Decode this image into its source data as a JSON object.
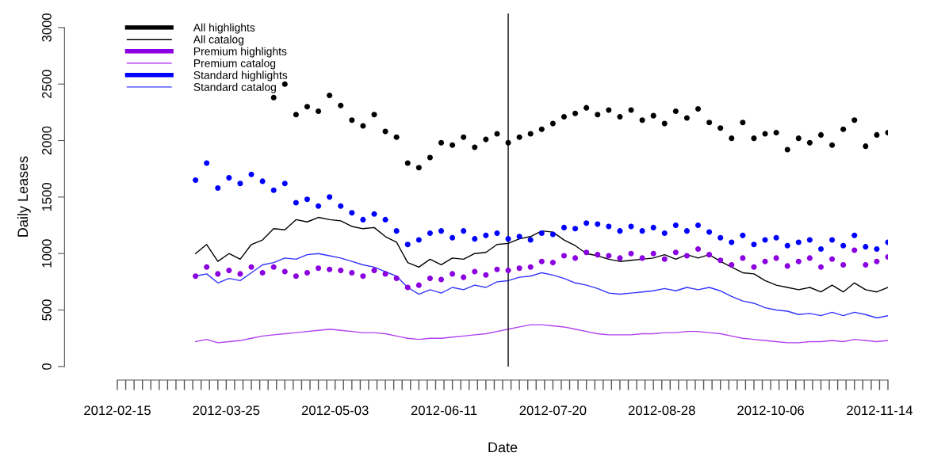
{
  "chart_data": {
    "type": "line",
    "xlabel": "Date",
    "ylabel": "Daily Leases",
    "legend": "top left",
    "grid": false,
    "x": [
      "2012-03-14",
      "2012-03-18",
      "2012-03-22",
      "2012-03-26",
      "2012-03-30",
      "2012-04-03",
      "2012-04-07",
      "2012-04-11",
      "2012-04-15",
      "2012-04-19",
      "2012-04-23",
      "2012-04-27",
      "2012-05-01",
      "2012-05-05",
      "2012-05-09",
      "2012-05-13",
      "2012-05-17",
      "2012-05-21",
      "2012-05-25",
      "2012-05-29",
      "2012-06-02",
      "2012-06-06",
      "2012-06-10",
      "2012-06-14",
      "2012-06-18",
      "2012-06-22",
      "2012-06-26",
      "2012-06-30",
      "2012-07-04",
      "2012-07-08",
      "2012-07-12",
      "2012-07-16",
      "2012-07-20",
      "2012-07-24",
      "2012-07-28",
      "2012-08-01",
      "2012-08-05",
      "2012-08-09",
      "2012-08-13",
      "2012-08-17",
      "2012-08-21",
      "2012-08-25",
      "2012-08-29",
      "2012-09-02",
      "2012-09-06",
      "2012-09-10",
      "2012-09-14",
      "2012-09-18",
      "2012-09-22",
      "2012-09-26",
      "2012-09-30",
      "2012-10-04",
      "2012-10-08",
      "2012-10-12",
      "2012-10-16",
      "2012-10-20",
      "2012-10-24",
      "2012-10-28",
      "2012-11-01",
      "2012-11-05",
      "2012-11-09",
      "2012-11-13",
      "2012-11-17"
    ],
    "series": [
      {
        "name": "All highlights",
        "type": "scatter",
        "marker": "circle",
        "color": "#000000",
        "values": [
          null,
          null,
          null,
          null,
          null,
          null,
          null,
          2380,
          2500,
          2230,
          2300,
          2260,
          2400,
          2310,
          2180,
          2130,
          2230,
          2080,
          2030,
          1800,
          1760,
          1850,
          1980,
          1960,
          2030,
          1940,
          2010,
          2060,
          1980,
          2030,
          2060,
          2100,
          2150,
          2210,
          2240,
          2290,
          2230,
          2270,
          2210,
          2270,
          2180,
          2220,
          2150,
          2260,
          2200,
          2280,
          2160,
          2110,
          2020,
          2160,
          2020,
          2060,
          2070,
          1920,
          2020,
          1980,
          2050,
          1960,
          2100,
          2180,
          1950,
          2050,
          2070
        ]
      },
      {
        "name": "All catalog",
        "color": "#000000",
        "values": [
          1000,
          1080,
          930,
          1000,
          950,
          1080,
          1120,
          1220,
          1210,
          1300,
          1280,
          1320,
          1300,
          1290,
          1240,
          1220,
          1230,
          1150,
          1100,
          920,
          880,
          950,
          900,
          960,
          950,
          1000,
          1010,
          1080,
          1090,
          1130,
          1150,
          1200,
          1190,
          1120,
          1070,
          1000,
          980,
          950,
          930,
          940,
          950,
          960,
          990,
          950,
          990,
          960,
          990,
          930,
          880,
          830,
          820,
          760,
          720,
          700,
          680,
          700,
          660,
          720,
          660,
          740,
          680,
          660,
          700
        ]
      },
      {
        "name": "Premium highlights",
        "type": "scatter",
        "marker": "circle",
        "color": "#8a00e0",
        "values": [
          800,
          880,
          820,
          850,
          820,
          880,
          830,
          880,
          840,
          800,
          830,
          870,
          860,
          850,
          830,
          800,
          850,
          820,
          780,
          700,
          720,
          780,
          770,
          820,
          790,
          840,
          810,
          860,
          850,
          870,
          880,
          930,
          920,
          980,
          960,
          1010,
          990,
          980,
          960,
          1000,
          960,
          1000,
          950,
          1010,
          980,
          1040,
          990,
          940,
          900,
          960,
          880,
          930,
          960,
          890,
          930,
          960,
          880,
          950,
          900,
          1030,
          900,
          930,
          970
        ]
      },
      {
        "name": "Premium catalog",
        "color": "#b040f0",
        "values": [
          220,
          240,
          210,
          220,
          230,
          250,
          270,
          280,
          290,
          300,
          310,
          320,
          330,
          320,
          310,
          300,
          300,
          290,
          270,
          250,
          240,
          250,
          250,
          260,
          270,
          280,
          290,
          310,
          330,
          350,
          370,
          370,
          360,
          350,
          330,
          310,
          290,
          280,
          280,
          280,
          290,
          290,
          300,
          300,
          310,
          310,
          300,
          290,
          270,
          250,
          240,
          230,
          220,
          210,
          210,
          220,
          220,
          230,
          220,
          240,
          230,
          220,
          230
        ]
      },
      {
        "name": "Standard highlights",
        "type": "scatter",
        "marker": "circle",
        "color": "#0000ff",
        "values": [
          1650,
          1800,
          1580,
          1670,
          1620,
          1700,
          1640,
          1560,
          1620,
          1450,
          1480,
          1420,
          1500,
          1420,
          1360,
          1300,
          1350,
          1300,
          1200,
          1080,
          1120,
          1180,
          1200,
          1140,
          1200,
          1130,
          1160,
          1180,
          1130,
          1150,
          1120,
          1180,
          1170,
          1230,
          1220,
          1270,
          1260,
          1240,
          1200,
          1240,
          1200,
          1230,
          1180,
          1250,
          1200,
          1250,
          1190,
          1140,
          1100,
          1160,
          1080,
          1120,
          1140,
          1070,
          1100,
          1120,
          1040,
          1120,
          1070,
          1160,
          1060,
          1040,
          1100
        ]
      },
      {
        "name": "Standard catalog",
        "color": "#3333ff",
        "values": [
          800,
          820,
          740,
          780,
          760,
          830,
          900,
          920,
          960,
          950,
          990,
          1000,
          980,
          960,
          930,
          900,
          880,
          840,
          800,
          700,
          640,
          680,
          650,
          700,
          680,
          720,
          700,
          750,
          760,
          790,
          800,
          830,
          810,
          780,
          740,
          720,
          690,
          650,
          640,
          650,
          660,
          670,
          690,
          670,
          700,
          680,
          700,
          670,
          620,
          580,
          560,
          520,
          500,
          490,
          460,
          470,
          450,
          480,
          450,
          480,
          460,
          430,
          450
        ]
      }
    ],
    "ref_lines": [
      {
        "axis": "x",
        "value": "2012-07-04",
        "color": "#000000"
      }
    ],
    "ylim": [
      -120,
      3125
    ],
    "yticks": [
      0,
      500,
      1000,
      1500,
      2000,
      2500,
      3000
    ],
    "xlim": [
      "2012-02-15",
      "2012-11-17"
    ],
    "xticks": [
      {
        "value": "2012-02-15",
        "label": "2012-02-15"
      },
      {
        "value": "2012-02-18",
        "label": null
      },
      {
        "value": "2012-02-21",
        "label": null
      },
      {
        "value": "2012-02-24",
        "label": null
      },
      {
        "value": "2012-02-27",
        "label": null
      },
      {
        "value": "2012-03-01",
        "label": null
      },
      {
        "value": "2012-03-04",
        "label": null
      },
      {
        "value": "2012-03-07",
        "label": null
      },
      {
        "value": "2012-03-10",
        "label": null
      },
      {
        "value": "2012-03-13",
        "label": null
      },
      {
        "value": "2012-03-16",
        "label": null
      },
      {
        "value": "2012-03-19",
        "label": null
      },
      {
        "value": "2012-03-22",
        "label": null
      },
      {
        "value": "2012-03-25",
        "label": "2012-03-25"
      },
      {
        "value": "2012-03-28",
        "label": null
      },
      {
        "value": "2012-03-31",
        "label": null
      },
      {
        "value": "2012-04-03",
        "label": null
      },
      {
        "value": "2012-04-06",
        "label": null
      },
      {
        "value": "2012-04-09",
        "label": null
      },
      {
        "value": "2012-04-12",
        "label": null
      },
      {
        "value": "2012-04-15",
        "label": null
      },
      {
        "value": "2012-04-18",
        "label": null
      },
      {
        "value": "2012-04-21",
        "label": null
      },
      {
        "value": "2012-04-24",
        "label": null
      },
      {
        "value": "2012-04-27",
        "label": null
      },
      {
        "value": "2012-04-30",
        "label": null
      },
      {
        "value": "2012-05-03",
        "label": "2012-05-03"
      },
      {
        "value": "2012-05-06",
        "label": null
      },
      {
        "value": "2012-05-09",
        "label": null
      },
      {
        "value": "2012-05-12",
        "label": null
      },
      {
        "value": "2012-05-15",
        "label": null
      },
      {
        "value": "2012-05-18",
        "label": null
      },
      {
        "value": "2012-05-21",
        "label": null
      },
      {
        "value": "2012-05-24",
        "label": null
      },
      {
        "value": "2012-05-27",
        "label": null
      },
      {
        "value": "2012-05-30",
        "label": null
      },
      {
        "value": "2012-06-02",
        "label": null
      },
      {
        "value": "2012-06-05",
        "label": null
      },
      {
        "value": "2012-06-08",
        "label": null
      },
      {
        "value": "2012-06-11",
        "label": "2012-06-11"
      },
      {
        "value": "2012-06-14",
        "label": null
      },
      {
        "value": "2012-06-17",
        "label": null
      },
      {
        "value": "2012-06-20",
        "label": null
      },
      {
        "value": "2012-06-23",
        "label": null
      },
      {
        "value": "2012-06-26",
        "label": null
      },
      {
        "value": "2012-06-29",
        "label": null
      },
      {
        "value": "2012-07-02",
        "label": null
      },
      {
        "value": "2012-07-05",
        "label": null
      },
      {
        "value": "2012-07-08",
        "label": null
      },
      {
        "value": "2012-07-11",
        "label": null
      },
      {
        "value": "2012-07-14",
        "label": null
      },
      {
        "value": "2012-07-17",
        "label": null
      },
      {
        "value": "2012-07-20",
        "label": "2012-07-20"
      },
      {
        "value": "2012-07-23",
        "label": null
      },
      {
        "value": "2012-07-26",
        "label": null
      },
      {
        "value": "2012-07-29",
        "label": null
      },
      {
        "value": "2012-08-01",
        "label": null
      },
      {
        "value": "2012-08-04",
        "label": null
      },
      {
        "value": "2012-08-07",
        "label": null
      },
      {
        "value": "2012-08-10",
        "label": null
      },
      {
        "value": "2012-08-13",
        "label": null
      },
      {
        "value": "2012-08-16",
        "label": null
      },
      {
        "value": "2012-08-19",
        "label": null
      },
      {
        "value": "2012-08-22",
        "label": null
      },
      {
        "value": "2012-08-25",
        "label": null
      },
      {
        "value": "2012-08-28",
        "label": "2012-08-28"
      },
      {
        "value": "2012-08-31",
        "label": null
      },
      {
        "value": "2012-09-03",
        "label": null
      },
      {
        "value": "2012-09-06",
        "label": null
      },
      {
        "value": "2012-09-09",
        "label": null
      },
      {
        "value": "2012-09-12",
        "label": null
      },
      {
        "value": "2012-09-15",
        "label": null
      },
      {
        "value": "2012-09-18",
        "label": null
      },
      {
        "value": "2012-09-21",
        "label": null
      },
      {
        "value": "2012-09-24",
        "label": null
      },
      {
        "value": "2012-09-27",
        "label": null
      },
      {
        "value": "2012-09-30",
        "label": null
      },
      {
        "value": "2012-10-03",
        "label": null
      },
      {
        "value": "2012-10-06",
        "label": "2012-10-06"
      },
      {
        "value": "2012-10-09",
        "label": null
      },
      {
        "value": "2012-10-12",
        "label": null
      },
      {
        "value": "2012-10-15",
        "label": null
      },
      {
        "value": "2012-10-18",
        "label": null
      },
      {
        "value": "2012-10-21",
        "label": null
      },
      {
        "value": "2012-10-24",
        "label": null
      },
      {
        "value": "2012-10-27",
        "label": null
      },
      {
        "value": "2012-10-30",
        "label": null
      },
      {
        "value": "2012-11-02",
        "label": null
      },
      {
        "value": "2012-11-05",
        "label": null
      },
      {
        "value": "2012-11-08",
        "label": null
      },
      {
        "value": "2012-11-11",
        "label": null
      },
      {
        "value": "2012-11-14",
        "label": "2012-11-14"
      },
      {
        "value": "2012-11-17",
        "label": null
      }
    ]
  }
}
